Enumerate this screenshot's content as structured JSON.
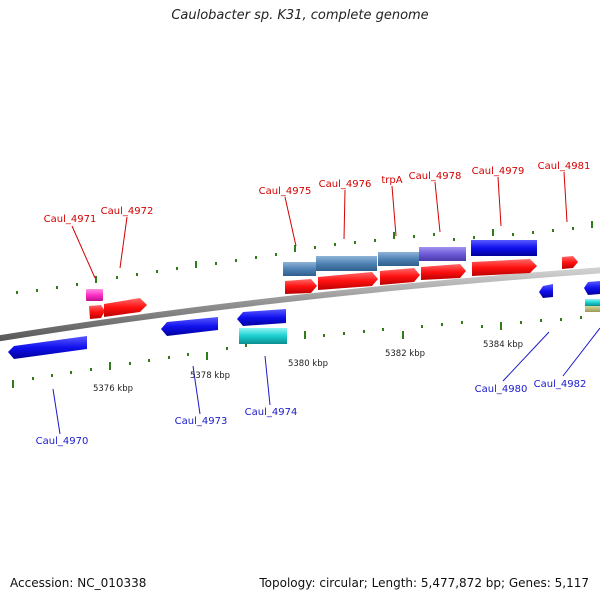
{
  "title": "Caulobacter sp. K31, complete genome",
  "footer": {
    "accession": "Accession: NC_010338",
    "summary": "Topology: circular; Length: 5,477,872 bp; Genes: 5,117"
  },
  "colors": {
    "forward_label": "#d40000",
    "reverse_label": "#1a1acc",
    "backbone": "#888888",
    "tick_dots": "#2e7d1a"
  },
  "scale_labels": [
    "5376 kbp",
    "5378 kbp",
    "5380 kbp",
    "5382 kbp",
    "5384 kbp"
  ],
  "gene_labels": {
    "caul_4970": "Caul_4970",
    "caul_4971": "Caul_4971",
    "caul_4972": "Caul_4972",
    "caul_4973": "Caul_4973",
    "caul_4974": "Caul_4974",
    "caul_4975": "Caul_4975",
    "caul_4976": "Caul_4976",
    "trpA": "trpA",
    "caul_4978": "Caul_4978",
    "caul_4979": "Caul_4979",
    "caul_4980": "Caul_4980",
    "caul_4981": "Caul_4981",
    "caul_4982": "Caul_4982"
  }
}
